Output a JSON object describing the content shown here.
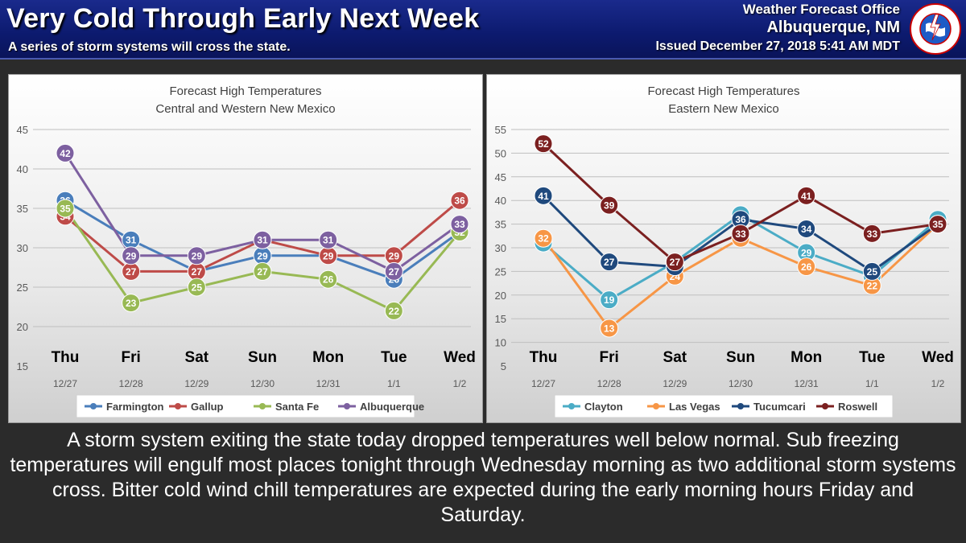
{
  "header": {
    "title": "Very Cold Through Early Next Week",
    "subtitle": "A series of storm systems will cross the state.",
    "office_line1": "Weather Forecast Office",
    "office_line2": "Albuquerque, NM",
    "office_line3": "Issued December 27, 2018 5:41 AM MDT",
    "logo_text": "NATIONAL WEATHER SERVICE"
  },
  "body_text": "A storm system exiting the state today dropped temperatures well below normal.  Sub freezing temperatures will engulf most places tonight through Wednesday morning as two additional storm systems cross.  Bitter cold wind chill temperatures are expected during the early morning hours Friday and Saturday.",
  "chart_data": [
    {
      "type": "line",
      "title": "Forecast High Temperatures",
      "subtitle": "Central and Western New Mexico",
      "categories": [
        "Thu",
        "Fri",
        "Sat",
        "Sun",
        "Mon",
        "Tue",
        "Wed"
      ],
      "dates": [
        "12/27",
        "12/28",
        "12/29",
        "12/30",
        "12/31",
        "1/1",
        "1/2"
      ],
      "ylim": [
        15,
        45
      ],
      "yticks": [
        15,
        20,
        25,
        30,
        35,
        40,
        45
      ],
      "grid": true,
      "legend": "bottom",
      "series": [
        {
          "name": "Farmington",
          "color": "#4a7ebb",
          "values": [
            36,
            31,
            27,
            29,
            29,
            26,
            32
          ]
        },
        {
          "name": "Gallup",
          "color": "#be4b48",
          "values": [
            34,
            27,
            27,
            31,
            29,
            29,
            36
          ]
        },
        {
          "name": "Santa Fe",
          "color": "#98b954",
          "values": [
            35,
            23,
            25,
            27,
            26,
            22,
            32
          ]
        },
        {
          "name": "Albuquerque",
          "color": "#7d60a0",
          "values": [
            42,
            29,
            29,
            31,
            31,
            27,
            33
          ]
        }
      ]
    },
    {
      "type": "line",
      "title": "Forecast High Temperatures",
      "subtitle": "Eastern New Mexico",
      "categories": [
        "Thu",
        "Fri",
        "Sat",
        "Sun",
        "Mon",
        "Tue",
        "Wed"
      ],
      "dates": [
        "12/27",
        "12/28",
        "12/29",
        "12/30",
        "12/31",
        "1/1",
        "1/2"
      ],
      "ylim": [
        5,
        55
      ],
      "yticks": [
        5,
        10,
        15,
        20,
        25,
        30,
        35,
        40,
        45,
        50,
        55
      ],
      "grid": true,
      "legend": "bottom",
      "series": [
        {
          "name": "Clayton",
          "color": "#4bacc6",
          "values": [
            31,
            19,
            27,
            37,
            29,
            24,
            36
          ]
        },
        {
          "name": "Las Vegas",
          "color": "#f79646",
          "values": [
            32,
            13,
            24,
            32,
            26,
            22,
            35
          ]
        },
        {
          "name": "Tucumcari",
          "color": "#1f497d",
          "values": [
            41,
            27,
            26,
            36,
            34,
            25,
            35
          ]
        },
        {
          "name": "Roswell",
          "color": "#7b2020",
          "values": [
            52,
            39,
            27,
            33,
            41,
            33,
            35
          ]
        }
      ]
    }
  ]
}
